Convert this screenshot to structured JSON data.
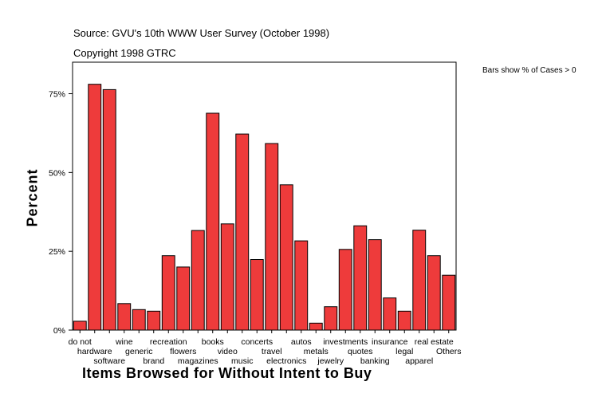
{
  "source_line": "Source: GVU's 10th WWW User Survey (October 1998)",
  "copyright_line": "Copyright 1998 GTRC",
  "legend_note": "Bars show % of Cases > 0",
  "chart_data": {
    "type": "bar",
    "title": "Source: GVU's 10th WWW User Survey (October 1998)",
    "xlabel": "Items Browsed for Without Intent to Buy",
    "ylabel": "Percent",
    "ylim": [
      0,
      0.85
    ],
    "yticks": [
      0,
      0.25,
      0.5,
      0.75
    ],
    "ytick_labels": [
      "0%",
      "25%",
      "50%",
      "75%"
    ],
    "bar_color": "#ee3b3b",
    "categories": [
      "do not",
      "hardware",
      "software",
      "wine",
      "generic",
      "brand",
      "recreation",
      "flowers",
      "magazines",
      "books",
      "video",
      "music",
      "concerts",
      "travel",
      "electronics",
      "autos",
      "metals",
      "jewelry",
      "investments",
      "quotes",
      "banking",
      "insurance",
      "legal",
      "apparel",
      "real estate",
      "Others"
    ],
    "values": [
      0.028,
      0.78,
      0.763,
      0.084,
      0.065,
      0.06,
      0.236,
      0.2,
      0.316,
      0.688,
      0.337,
      0.622,
      0.224,
      0.592,
      0.461,
      0.283,
      0.022,
      0.074,
      0.256,
      0.331,
      0.287,
      0.102,
      0.06,
      0.317,
      0.236,
      0.174
    ]
  }
}
